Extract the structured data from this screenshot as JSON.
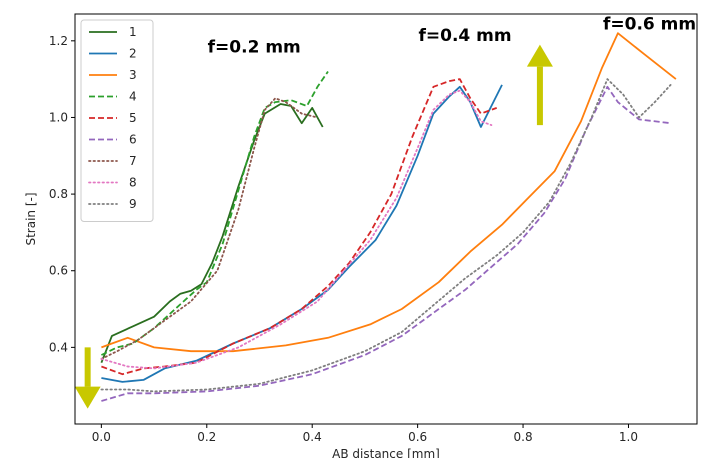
{
  "chart_data": {
    "type": "line",
    "title": "",
    "xlabel": "AB distance [mm]",
    "ylabel": "Strain [-]",
    "xlim": [
      -0.05,
      1.13
    ],
    "ylim": [
      0.2,
      1.27
    ],
    "xticks": [
      0.0,
      0.2,
      0.4,
      0.6,
      0.8,
      1.0
    ],
    "xtick_labels": [
      "0.0",
      "0.2",
      "0.4",
      "0.6",
      "0.8",
      "1.0"
    ],
    "yticks": [
      0.4,
      0.6,
      0.8,
      1.0,
      1.2
    ],
    "ytick_labels": [
      "0.4",
      "0.6",
      "0.8",
      "1.0",
      "1.2"
    ],
    "grid": false,
    "legend_position": "top-left",
    "annotations": [
      {
        "text": "f=0.2 mm",
        "x": 0.29,
        "y": 1.17
      },
      {
        "text": "f=0.4 mm",
        "x": 0.69,
        "y": 1.2
      },
      {
        "text": "f=0.6 mm",
        "x": 1.04,
        "y": 1.23
      }
    ],
    "arrows": [
      {
        "direction": "down",
        "x": -0.026,
        "y_from": 0.4,
        "y_to": 0.24,
        "color": "#c8c800"
      },
      {
        "direction": "up",
        "x": 0.832,
        "y_from": 0.98,
        "y_to": 1.19,
        "color": "#c8c800"
      }
    ],
    "series": [
      {
        "name": "1",
        "color": "#2a6e1f",
        "dash": "solid",
        "x": [
          0.0,
          0.02,
          0.06,
          0.1,
          0.13,
          0.15,
          0.17,
          0.19,
          0.21,
          0.23,
          0.26,
          0.29,
          0.31,
          0.34,
          0.36,
          0.38,
          0.4,
          0.42
        ],
        "y": [
          0.36,
          0.43,
          0.455,
          0.48,
          0.52,
          0.54,
          0.548,
          0.565,
          0.62,
          0.69,
          0.82,
          0.94,
          1.01,
          1.035,
          1.03,
          0.985,
          1.025,
          0.975
        ]
      },
      {
        "name": "2",
        "color": "#1f77b4",
        "dash": "solid",
        "x": [
          0.0,
          0.04,
          0.08,
          0.12,
          0.18,
          0.25,
          0.32,
          0.38,
          0.43,
          0.47,
          0.52,
          0.56,
          0.6,
          0.63,
          0.66,
          0.68,
          0.7,
          0.72,
          0.74,
          0.76
        ],
        "y": [
          0.32,
          0.31,
          0.315,
          0.345,
          0.365,
          0.41,
          0.45,
          0.5,
          0.55,
          0.61,
          0.68,
          0.77,
          0.9,
          1.01,
          1.055,
          1.08,
          1.04,
          0.975,
          1.03,
          1.085
        ]
      },
      {
        "name": "3",
        "color": "#ff7f0e",
        "dash": "solid",
        "x": [
          0.0,
          0.02,
          0.05,
          0.1,
          0.17,
          0.25,
          0.35,
          0.43,
          0.51,
          0.57,
          0.64,
          0.7,
          0.76,
          0.81,
          0.86,
          0.91,
          0.95,
          0.98,
          1.03,
          1.09
        ],
        "y": [
          0.4,
          0.41,
          0.425,
          0.4,
          0.39,
          0.39,
          0.405,
          0.425,
          0.46,
          0.5,
          0.57,
          0.65,
          0.72,
          0.79,
          0.86,
          0.99,
          1.13,
          1.22,
          1.165,
          1.1
        ]
      },
      {
        "name": "4",
        "color": "#2ca02c",
        "dash": "dashed",
        "x": [
          0.0,
          0.03,
          0.06,
          0.1,
          0.14,
          0.18,
          0.2,
          0.23,
          0.26,
          0.29,
          0.31,
          0.33,
          0.36,
          0.39,
          0.41,
          0.43
        ],
        "y": [
          0.38,
          0.4,
          0.41,
          0.45,
          0.5,
          0.55,
          0.57,
          0.67,
          0.81,
          0.95,
          1.025,
          1.04,
          1.045,
          1.03,
          1.08,
          1.12
        ]
      },
      {
        "name": "5",
        "color": "#d62728",
        "dash": "dashed",
        "x": [
          0.0,
          0.04,
          0.08,
          0.12,
          0.18,
          0.25,
          0.32,
          0.38,
          0.43,
          0.47,
          0.51,
          0.55,
          0.59,
          0.63,
          0.66,
          0.68,
          0.7,
          0.72,
          0.75
        ],
        "y": [
          0.35,
          0.33,
          0.345,
          0.35,
          0.36,
          0.41,
          0.45,
          0.5,
          0.56,
          0.62,
          0.7,
          0.8,
          0.95,
          1.08,
          1.095,
          1.1,
          1.05,
          1.01,
          1.025
        ]
      },
      {
        "name": "6",
        "color": "#9467bd",
        "dash": "dashed",
        "x": [
          0.0,
          0.05,
          0.1,
          0.2,
          0.3,
          0.4,
          0.5,
          0.57,
          0.63,
          0.69,
          0.74,
          0.79,
          0.84,
          0.88,
          0.92,
          0.96,
          0.98,
          1.02,
          1.08
        ],
        "y": [
          0.26,
          0.28,
          0.28,
          0.285,
          0.3,
          0.33,
          0.38,
          0.43,
          0.49,
          0.55,
          0.61,
          0.67,
          0.75,
          0.84,
          0.97,
          1.08,
          1.04,
          0.995,
          0.985
        ]
      },
      {
        "name": "7",
        "color": "#8c564b",
        "dash": "dotted",
        "x": [
          0.0,
          0.03,
          0.07,
          0.12,
          0.17,
          0.22,
          0.26,
          0.29,
          0.31,
          0.33,
          0.35,
          0.38,
          0.41
        ],
        "y": [
          0.37,
          0.39,
          0.42,
          0.47,
          0.52,
          0.6,
          0.76,
          0.92,
          1.02,
          1.05,
          1.04,
          1.01,
          1.0
        ]
      },
      {
        "name": "8",
        "color": "#e377c2",
        "dash": "dotted",
        "x": [
          0.0,
          0.05,
          0.1,
          0.18,
          0.26,
          0.34,
          0.41,
          0.46,
          0.51,
          0.56,
          0.6,
          0.63,
          0.66,
          0.68,
          0.7,
          0.72,
          0.74
        ],
        "y": [
          0.37,
          0.35,
          0.345,
          0.36,
          0.4,
          0.46,
          0.52,
          0.6,
          0.68,
          0.79,
          0.92,
          1.02,
          1.06,
          1.07,
          1.04,
          0.99,
          0.98
        ]
      },
      {
        "name": "9",
        "color": "#7f7f7f",
        "dash": "dotted",
        "x": [
          0.0,
          0.05,
          0.1,
          0.2,
          0.3,
          0.4,
          0.5,
          0.57,
          0.63,
          0.69,
          0.75,
          0.8,
          0.85,
          0.89,
          0.93,
          0.96,
          0.99,
          1.02,
          1.05,
          1.08
        ],
        "y": [
          0.29,
          0.29,
          0.285,
          0.29,
          0.305,
          0.34,
          0.39,
          0.44,
          0.51,
          0.58,
          0.64,
          0.7,
          0.78,
          0.88,
          1.0,
          1.1,
          1.06,
          1.0,
          1.04,
          1.085
        ]
      }
    ]
  }
}
